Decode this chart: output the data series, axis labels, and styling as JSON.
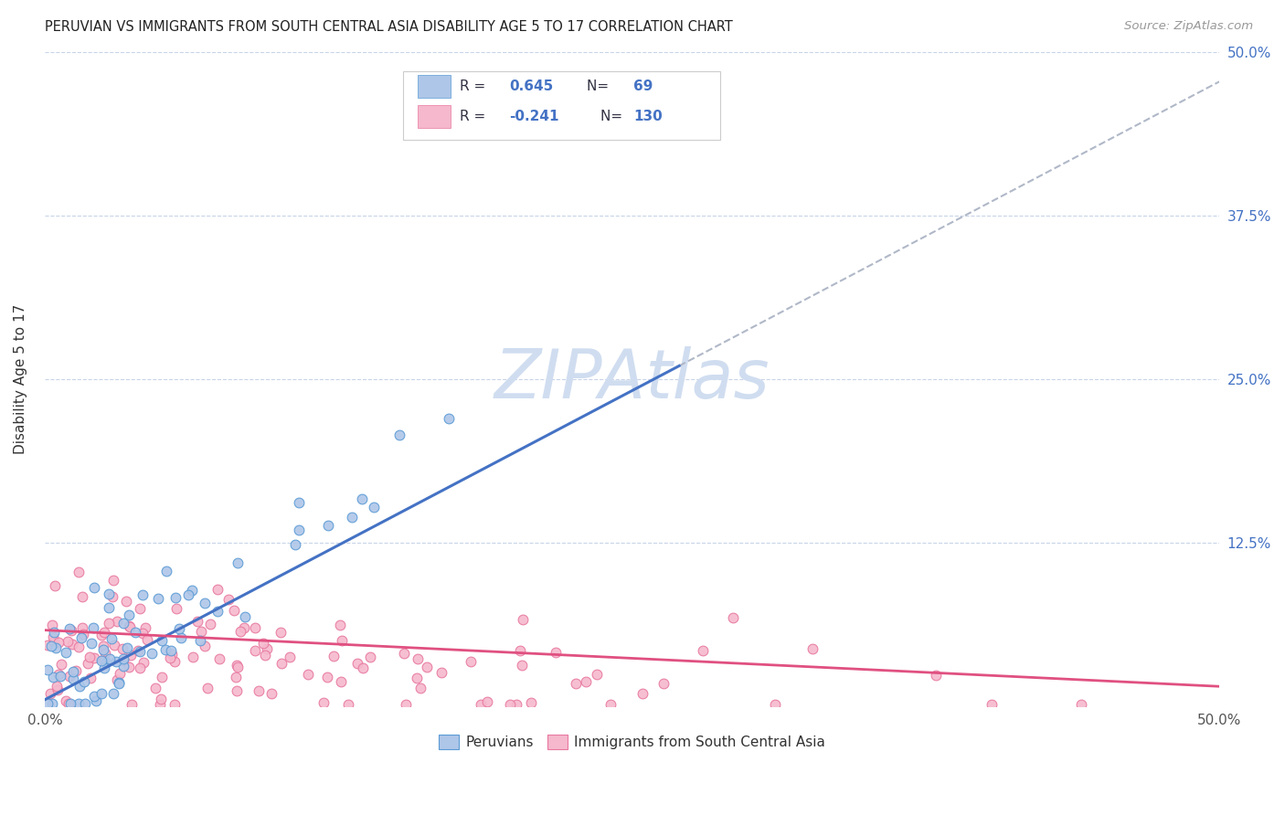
{
  "title": "PERUVIAN VS IMMIGRANTS FROM SOUTH CENTRAL ASIA DISABILITY AGE 5 TO 17 CORRELATION CHART",
  "source": "Source: ZipAtlas.com",
  "ylabel": "Disability Age 5 to 17",
  "x_min": 0.0,
  "x_max": 0.5,
  "y_min": 0.0,
  "y_max": 0.5,
  "blue_R": 0.645,
  "blue_N": 69,
  "pink_R": -0.241,
  "pink_N": 130,
  "blue_fill": "#aec6e8",
  "pink_fill": "#f5b8cc",
  "blue_edge": "#5b9bd5",
  "pink_edge": "#e878a0",
  "blue_line": "#4472c4",
  "pink_line": "#e05080",
  "dash_line": "#b0b8c8",
  "grid_color": "#c8d4e8",
  "bg_color": "#ffffff",
  "text_color": "#333333",
  "right_axis_color": "#4472c4",
  "watermark_color": "#d0ddf0",
  "blue_trend_x0": 0.0,
  "blue_trend_y0": 0.005,
  "blue_trend_x1": 0.27,
  "blue_trend_y1": 0.26,
  "pink_trend_x0": 0.0,
  "pink_trend_y0": 0.058,
  "pink_trend_x1": 0.5,
  "pink_trend_y1": 0.015
}
